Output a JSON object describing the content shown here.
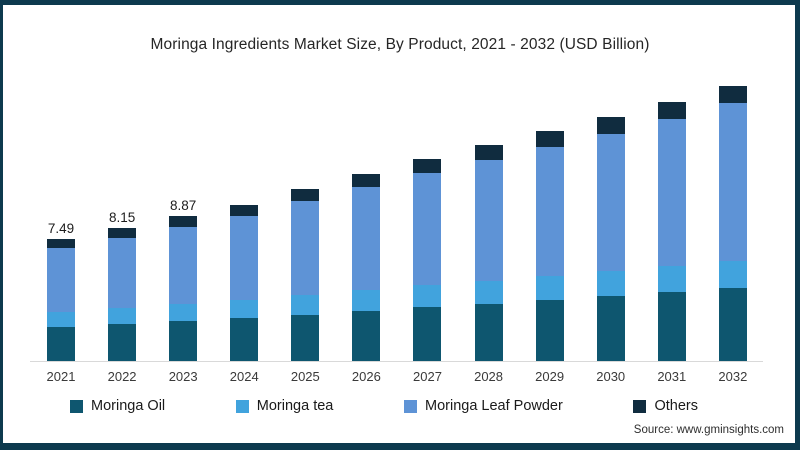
{
  "frame": {
    "border_color": "#0d3a4e",
    "background": "#ffffff"
  },
  "title": "Moringa Ingredients Market Size, By Product, 2021 - 2032 (USD Billion)",
  "source": "Source: www.gminsights.com",
  "chart_data": {
    "type": "bar",
    "stacked": true,
    "title": "Moringa Ingredients Market Size, By Product, 2021 - 2032 (USD Billion)",
    "xlabel": "",
    "ylabel": "USD Billion",
    "grid": false,
    "legend_position": "bottom",
    "axis_line_color": "#d9d9d9",
    "ylim": [
      0,
      18
    ],
    "categories": [
      "2021",
      "2022",
      "2023",
      "2024",
      "2025",
      "2026",
      "2027",
      "2028",
      "2029",
      "2030",
      "2031",
      "2032"
    ],
    "bar_total_labels": [
      "7.49",
      "8.15",
      "8.87",
      "",
      "",
      "",
      "",
      "",
      "",
      "",
      "",
      ""
    ],
    "totals": [
      7.49,
      8.15,
      8.87,
      9.6,
      10.55,
      11.5,
      12.4,
      13.25,
      14.1,
      14.95,
      15.9,
      16.85
    ],
    "series": [
      {
        "name": "Moringa Oil",
        "color": "#0e566f",
        "values": [
          2.1,
          2.28,
          2.46,
          2.64,
          2.84,
          3.06,
          3.3,
          3.52,
          3.76,
          4.0,
          4.26,
          4.5
        ]
      },
      {
        "name": "Moringa tea",
        "color": "#41a3dd",
        "values": [
          0.92,
          0.98,
          1.05,
          1.12,
          1.2,
          1.28,
          1.35,
          1.42,
          1.48,
          1.54,
          1.6,
          1.66
        ]
      },
      {
        "name": "Moringa Leaf Powder",
        "color": "#5e93d6",
        "values": [
          3.92,
          4.29,
          4.7,
          5.14,
          5.76,
          6.36,
          6.9,
          7.41,
          7.91,
          8.41,
          8.99,
          9.64
        ]
      },
      {
        "name": "Others",
        "color": "#102c3f",
        "values": [
          0.55,
          0.6,
          0.66,
          0.7,
          0.75,
          0.8,
          0.85,
          0.9,
          0.95,
          1.0,
          1.05,
          1.05
        ]
      }
    ]
  }
}
